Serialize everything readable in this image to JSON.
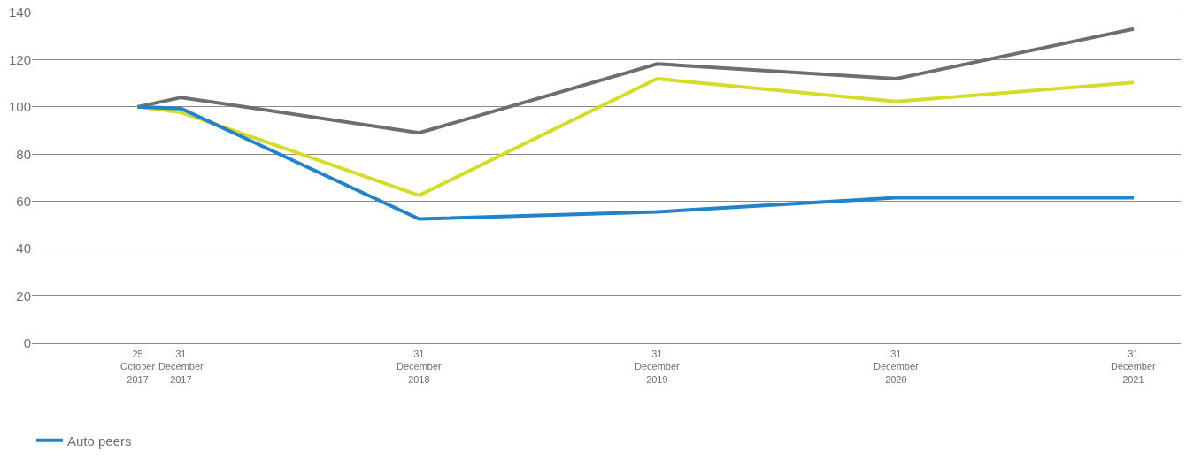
{
  "chart_data": {
    "type": "line",
    "x": [
      "2017-10-25",
      "2017-12-31",
      "2018-12-31",
      "2019-12-31",
      "2020-12-31",
      "2021-12-31"
    ],
    "series": [
      {
        "color": "#d4dc2a",
        "values": [
          100,
          97.7,
          62.6,
          111.9,
          102.3,
          110.3
        ]
      },
      {
        "color": "#6e6e6e",
        "values": [
          100,
          104,
          89,
          118.2,
          111.9,
          133
        ]
      },
      {
        "name": "Auto peers",
        "color": "#2383c8",
        "values": [
          100,
          99.3,
          52.6,
          55.6,
          61.6,
          61.6
        ]
      }
    ],
    "xlim": [
      "2017-05-16",
      "2022-03-13"
    ],
    "xticks": [
      {
        "value": "2017-10-25",
        "label": "25 October\n2017"
      },
      {
        "value": "2017-12-31",
        "label": "31 December\n2017"
      },
      {
        "value": "2018-12-31",
        "label": "31 December\n2018"
      },
      {
        "value": "2019-12-31",
        "label": "31 December\n2019"
      },
      {
        "value": "2020-12-31",
        "label": "31 December\n2020"
      },
      {
        "value": "2021-12-31",
        "label": "31 December\n2021"
      }
    ],
    "ylim": [
      0,
      140
    ],
    "yticks": [
      0,
      20,
      40,
      60,
      80,
      100,
      120,
      140
    ],
    "grid": "y",
    "legend": "bottom left",
    "marker": "none",
    "line_style": "solid"
  }
}
